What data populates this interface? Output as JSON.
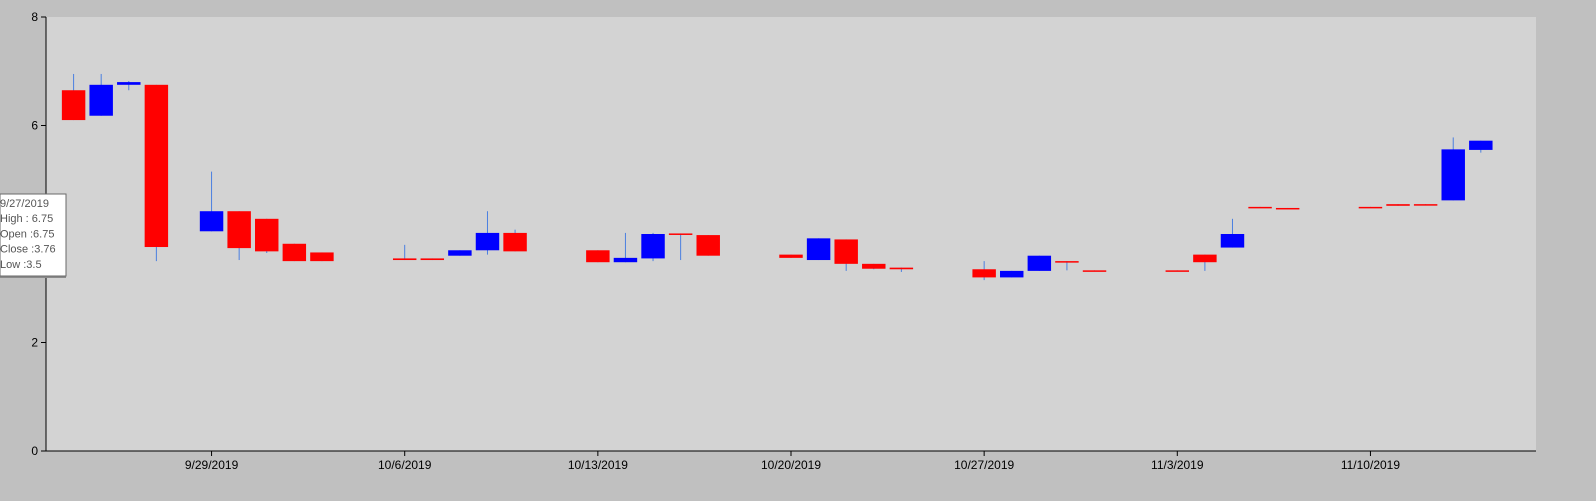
{
  "chart_data": {
    "type": "candlestick",
    "title": "",
    "xlabel": "",
    "ylabel": "",
    "ylim": [
      0,
      8
    ],
    "yticks": [
      "0",
      "2",
      "4",
      "6",
      "8"
    ],
    "xticks": [
      {
        "date": "2019-09-29",
        "label": "9/29/2019"
      },
      {
        "date": "2019-10-06",
        "label": "10/6/2019"
      },
      {
        "date": "2019-10-13",
        "label": "10/13/2019"
      },
      {
        "date": "2019-10-20",
        "label": "10/20/2019"
      },
      {
        "date": "2019-10-27",
        "label": "10/27/2019"
      },
      {
        "date": "2019-11-03",
        "label": "11/3/2019"
      },
      {
        "date": "2019-11-10",
        "label": "11/10/2019"
      }
    ],
    "xlim": [
      "2019-09-23",
      "2019-11-16"
    ],
    "colors": {
      "rising": "#0000ff",
      "falling": "#ff0000",
      "wick": "#4a7fe0",
      "plot_bg": "#d3d3d3",
      "frame_bg": "#c0c0c0"
    },
    "grid": false,
    "legend": "none",
    "candles": [
      {
        "date": "2019-09-24",
        "open": 6.65,
        "high": 6.95,
        "low": 6.1,
        "close": 6.1
      },
      {
        "date": "2019-09-25",
        "open": 6.18,
        "high": 6.95,
        "low": 6.18,
        "close": 6.75
      },
      {
        "date": "2019-09-26",
        "open": 6.75,
        "high": 6.82,
        "low": 6.65,
        "close": 6.8
      },
      {
        "date": "2019-09-27",
        "open": 6.75,
        "high": 6.75,
        "low": 3.5,
        "close": 3.76
      },
      {
        "date": "2019-09-29",
        "open": 4.05,
        "high": 5.15,
        "low": 4.05,
        "close": 4.42
      },
      {
        "date": "2019-09-30",
        "open": 4.42,
        "high": 4.42,
        "low": 3.52,
        "close": 3.74
      },
      {
        "date": "2019-10-01",
        "open": 4.28,
        "high": 4.28,
        "low": 3.65,
        "close": 3.68
      },
      {
        "date": "2019-10-02",
        "open": 3.82,
        "high": 3.82,
        "low": 3.5,
        "close": 3.5
      },
      {
        "date": "2019-10-03",
        "open": 3.66,
        "high": 3.66,
        "low": 3.5,
        "close": 3.5
      },
      {
        "date": "2019-10-06",
        "open": 3.55,
        "high": 3.8,
        "low": 3.52,
        "close": 3.52
      },
      {
        "date": "2019-10-07",
        "open": 3.55,
        "high": 3.55,
        "low": 3.52,
        "close": 3.52
      },
      {
        "date": "2019-10-08",
        "open": 3.6,
        "high": 3.7,
        "low": 3.6,
        "close": 3.7
      },
      {
        "date": "2019-10-09",
        "open": 3.7,
        "high": 4.42,
        "low": 3.62,
        "close": 4.02
      },
      {
        "date": "2019-10-10",
        "open": 4.02,
        "high": 4.08,
        "low": 3.68,
        "close": 3.68
      },
      {
        "date": "2019-10-13",
        "open": 3.7,
        "high": 3.7,
        "low": 3.48,
        "close": 3.48
      },
      {
        "date": "2019-10-14",
        "open": 3.48,
        "high": 4.02,
        "low": 3.48,
        "close": 3.56
      },
      {
        "date": "2019-10-15",
        "open": 3.55,
        "high": 4.02,
        "low": 3.5,
        "close": 4.0
      },
      {
        "date": "2019-10-16",
        "open": 4.01,
        "high": 4.01,
        "low": 3.52,
        "close": 3.99
      },
      {
        "date": "2019-10-17",
        "open": 3.98,
        "high": 3.98,
        "low": 3.6,
        "close": 3.6
      },
      {
        "date": "2019-10-20",
        "open": 3.62,
        "high": 3.62,
        "low": 3.56,
        "close": 3.56
      },
      {
        "date": "2019-10-21",
        "open": 3.52,
        "high": 3.92,
        "low": 3.52,
        "close": 3.92
      },
      {
        "date": "2019-10-22",
        "open": 3.9,
        "high": 3.9,
        "low": 3.32,
        "close": 3.45
      },
      {
        "date": "2019-10-23",
        "open": 3.45,
        "high": 3.45,
        "low": 3.35,
        "close": 3.36
      },
      {
        "date": "2019-10-24",
        "open": 3.38,
        "high": 3.38,
        "low": 3.3,
        "close": 3.35
      },
      {
        "date": "2019-10-27",
        "open": 3.35,
        "high": 3.5,
        "low": 3.15,
        "close": 3.2
      },
      {
        "date": "2019-10-28",
        "open": 3.2,
        "high": 3.32,
        "low": 3.2,
        "close": 3.32
      },
      {
        "date": "2019-10-29",
        "open": 3.32,
        "high": 3.6,
        "low": 3.32,
        "close": 3.6
      },
      {
        "date": "2019-10-30",
        "open": 3.5,
        "high": 3.5,
        "low": 3.33,
        "close": 3.48
      },
      {
        "date": "2019-10-31",
        "open": 3.33,
        "high": 3.33,
        "low": 3.31,
        "close": 3.31
      },
      {
        "date": "2019-11-03",
        "open": 3.33,
        "high": 3.33,
        "low": 3.31,
        "close": 3.31
      },
      {
        "date": "2019-11-04",
        "open": 3.62,
        "high": 3.62,
        "low": 3.32,
        "close": 3.48
      },
      {
        "date": "2019-11-05",
        "open": 3.75,
        "high": 4.28,
        "low": 3.75,
        "close": 4.0
      },
      {
        "date": "2019-11-06",
        "open": 4.5,
        "high": 4.5,
        "low": 4.48,
        "close": 4.48
      },
      {
        "date": "2019-11-07",
        "open": 4.48,
        "high": 4.48,
        "low": 4.46,
        "close": 4.46
      },
      {
        "date": "2019-11-10",
        "open": 4.5,
        "high": 4.5,
        "low": 4.48,
        "close": 4.48
      },
      {
        "date": "2019-11-11",
        "open": 4.55,
        "high": 4.55,
        "low": 4.52,
        "close": 4.52
      },
      {
        "date": "2019-11-12",
        "open": 4.55,
        "high": 4.55,
        "low": 4.53,
        "close": 4.53
      },
      {
        "date": "2019-11-13",
        "open": 4.62,
        "high": 5.78,
        "low": 4.62,
        "close": 5.56
      },
      {
        "date": "2019-11-14",
        "open": 5.55,
        "high": 5.72,
        "low": 5.5,
        "close": 5.72
      }
    ],
    "tooltip": {
      "date": "9/27/2019",
      "lines": [
        "9/27/2019",
        "High : 6.75",
        "Open :6.75",
        "Close :3.76",
        "Low :3.5"
      ]
    }
  }
}
